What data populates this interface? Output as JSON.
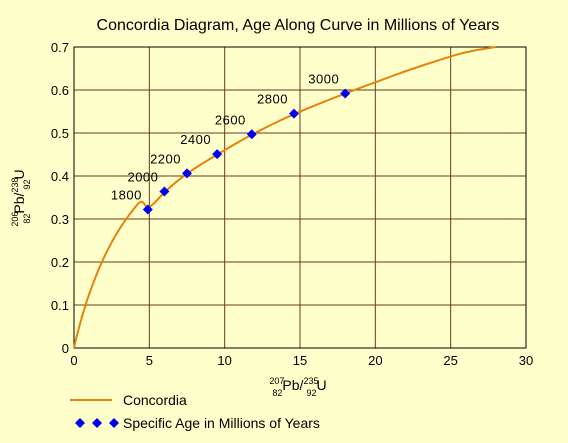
{
  "chart_data": {
    "type": "line",
    "title": "Concordia Diagram, Age Along Curve in Millions of Years",
    "xlabel": {
      "sup1": "207",
      "sub1": "82",
      "el1": "Pb/",
      "sup2": "235",
      "sub2": "92",
      "el2": "U"
    },
    "ylabel": {
      "sup1": "206",
      "sub1": "82",
      "el1": "Pb/",
      "sup2": "238",
      "sub2": "92",
      "el2": "U"
    },
    "xlim": [
      0,
      30
    ],
    "ylim": [
      0,
      0.7
    ],
    "xticks": [
      0,
      5,
      10,
      15,
      20,
      25,
      30
    ],
    "yticks": [
      0,
      0.1,
      0.2,
      0.3,
      0.4,
      0.5,
      0.6,
      0.7
    ],
    "ytick_labels": [
      "0",
      "0.1",
      "0.2",
      "0.3",
      "0.4",
      "0.5",
      "0.6",
      "0.7"
    ],
    "grid": true,
    "legend_position": "bottom-left",
    "series": [
      {
        "name": "Concordia",
        "color": "#e8820c",
        "x": [
          0,
          0.1,
          0.25,
          0.5,
          0.75,
          1.0,
          1.5,
          2.0,
          2.5,
          3.0,
          3.5,
          4.0,
          4.5,
          4.9,
          6.0,
          7.5,
          9.5,
          11.8,
          14.6,
          18.0,
          20.0,
          22.0,
          24.0,
          26.0,
          28.0
        ],
        "y": [
          0,
          0.016,
          0.037,
          0.069,
          0.098,
          0.125,
          0.172,
          0.212,
          0.246,
          0.276,
          0.302,
          0.325,
          0.346,
          0.32,
          0.363,
          0.407,
          0.45,
          0.497,
          0.545,
          0.592,
          0.618,
          0.644,
          0.667,
          0.689,
          0.7
        ]
      },
      {
        "name": "Specific Age in Millions of Years",
        "color": "#0000ee",
        "marker": "diamond",
        "ages": [
          "1800",
          "2000",
          "2200",
          "2400",
          "2600",
          "2800",
          "3000"
        ],
        "x": [
          4.9,
          6.0,
          7.5,
          9.5,
          11.8,
          14.6,
          18.0
        ],
        "y": [
          0.322,
          0.364,
          0.406,
          0.451,
          0.497,
          0.545,
          0.592
        ]
      }
    ]
  }
}
